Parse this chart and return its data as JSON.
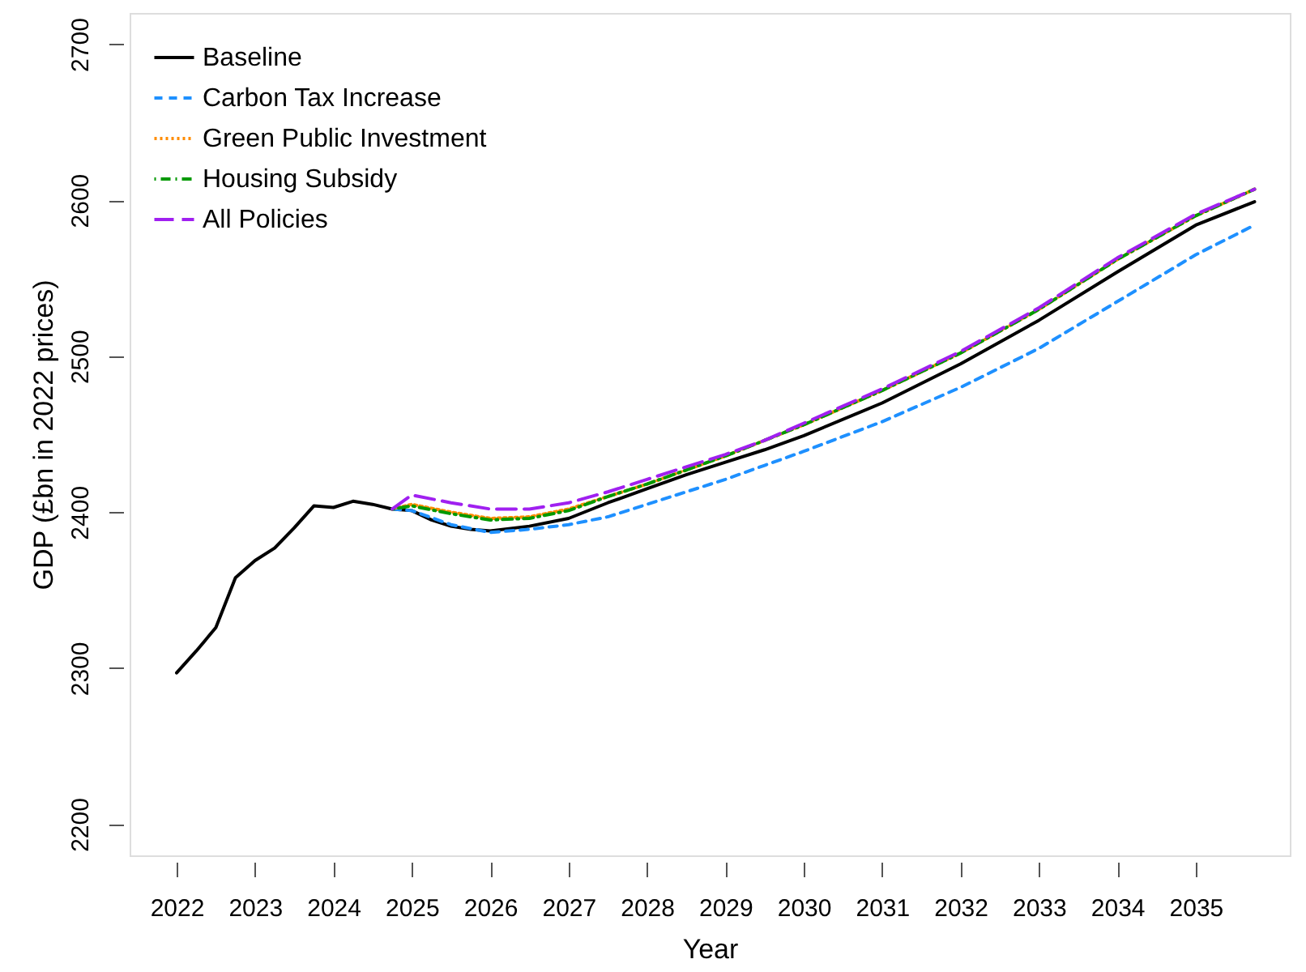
{
  "chart_data": {
    "type": "line",
    "xlabel": "Year",
    "ylabel": "GDP (£bn in 2022 prices)",
    "xlim": [
      2021.4,
      2036.2
    ],
    "ylim": [
      2180,
      2720
    ],
    "xticks": [
      2022,
      2023,
      2024,
      2025,
      2026,
      2027,
      2028,
      2029,
      2030,
      2031,
      2032,
      2033,
      2034,
      2035
    ],
    "yticks": [
      2200,
      2300,
      2400,
      2500,
      2600,
      2700
    ],
    "grid": false,
    "legend": "top left",
    "marker": "none",
    "series": [
      {
        "name": "Baseline",
        "color": "#000000",
        "line_style": "solid",
        "x": [
          2022,
          2022.25,
          2022.5,
          2022.75,
          2023,
          2023.25,
          2023.5,
          2023.75,
          2024,
          2024.25,
          2024.5,
          2024.75,
          2025,
          2025.25,
          2025.5,
          2025.75,
          2026,
          2026.5,
          2027,
          2027.5,
          2028,
          2028.5,
          2029,
          2029.5,
          2030,
          2031,
          2032,
          2033,
          2034,
          2035,
          2035.75
        ],
        "values": [
          2297,
          2311,
          2326,
          2358,
          2369,
          2377,
          2390,
          2404,
          2403,
          2407,
          2405,
          2402,
          2401,
          2395,
          2391,
          2389,
          2388,
          2391,
          2396,
          2406,
          2415,
          2424,
          2432,
          2440,
          2449,
          2470,
          2495,
          2523,
          2554,
          2584,
          2599
        ]
      },
      {
        "name": "Carbon Tax Increase",
        "color": "#1e90ff",
        "line_style": "dashed",
        "x": [
          2024.75,
          2025,
          2025.5,
          2026,
          2026.5,
          2027,
          2027.5,
          2028,
          2028.5,
          2029,
          2029.5,
          2030,
          2031,
          2032,
          2033,
          2034,
          2035,
          2035.75
        ],
        "values": [
          2402,
          2401,
          2392,
          2387,
          2389,
          2392,
          2397,
          2405,
          2413,
          2421,
          2430,
          2439,
          2458,
          2480,
          2505,
          2535,
          2565,
          2584
        ]
      },
      {
        "name": "Green Public Investment",
        "color": "#ff8c00",
        "line_style": "dotted",
        "x": [
          2024.75,
          2025,
          2025.5,
          2026,
          2026.5,
          2027,
          2027.5,
          2028,
          2028.5,
          2029,
          2029.5,
          2030,
          2031,
          2032,
          2033,
          2034,
          2035,
          2035.75
        ],
        "values": [
          2402,
          2405,
          2400,
          2396,
          2397,
          2402,
          2410,
          2418,
          2427,
          2436,
          2446,
          2456,
          2478,
          2502,
          2530,
          2562,
          2590,
          2607
        ]
      },
      {
        "name": "Housing Subsidy",
        "color": "#009900",
        "line_style": "dashdot",
        "x": [
          2024.75,
          2025,
          2025.5,
          2026,
          2026.5,
          2027,
          2027.5,
          2028,
          2028.5,
          2029,
          2029.5,
          2030,
          2031,
          2032,
          2033,
          2034,
          2035,
          2035.75
        ],
        "values": [
          2402,
          2404,
          2399,
          2395,
          2396,
          2401,
          2410,
          2418,
          2427,
          2436,
          2446,
          2456,
          2478,
          2502,
          2530,
          2562,
          2590,
          2607
        ]
      },
      {
        "name": "All Policies",
        "color": "#a020f0",
        "line_style": "longdash",
        "x": [
          2024.75,
          2025,
          2025.5,
          2026,
          2026.5,
          2027,
          2027.5,
          2028,
          2028.5,
          2029,
          2029.5,
          2030,
          2031,
          2032,
          2033,
          2034,
          2035,
          2035.75
        ],
        "values": [
          2402,
          2411,
          2406,
          2402,
          2402,
          2406,
          2413,
          2421,
          2429,
          2437,
          2446,
          2457,
          2479,
          2503,
          2531,
          2563,
          2591,
          2607
        ]
      }
    ]
  }
}
